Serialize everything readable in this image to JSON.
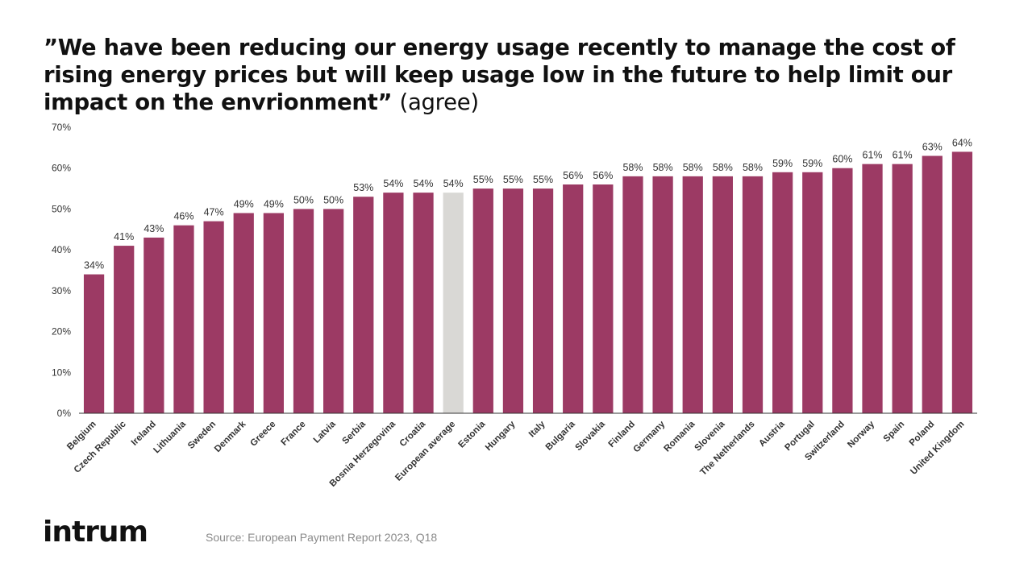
{
  "title": {
    "quote": "”We have been reducing our energy usage recently to manage the cost of rising energy prices but will keep usage low in the future to help limit our impact on the envrionment”",
    "suffix": "(agree)"
  },
  "chart_data": {
    "type": "bar",
    "title": "”We have been reducing our energy usage recently to manage the cost of rising energy prices but will keep usage low in the future to help limit our impact on the envrionment” (agree)",
    "xlabel": "",
    "ylabel": "",
    "ylim": [
      0,
      70
    ],
    "yticks": [
      "0%",
      "10%",
      "20%",
      "30%",
      "40%",
      "50%",
      "60%",
      "70%"
    ],
    "ytick_values": [
      0,
      10,
      20,
      30,
      40,
      50,
      60,
      70
    ],
    "grid": false,
    "categories": [
      "Belgium",
      "Czech Republic",
      "Ireland",
      "Lithuania",
      "Sweden",
      "Denmark",
      "Greece",
      "France",
      "Latvia",
      "Serbia",
      "Bosnia Herzegovina",
      "Croatia",
      "European average",
      "Estonia",
      "Hungary",
      "Italy",
      "Bulgaria",
      "Slovakia",
      "Finland",
      "Germany",
      "Romania",
      "Slovenia",
      "The Netherlands",
      "Austria",
      "Portugal",
      "Switzerland",
      "Norway",
      "Spain",
      "Poland",
      "United Kingdom"
    ],
    "values": [
      34,
      41,
      43,
      46,
      47,
      49,
      49,
      50,
      50,
      53,
      54,
      54,
      54,
      55,
      55,
      55,
      56,
      56,
      58,
      58,
      58,
      58,
      58,
      59,
      59,
      60,
      61,
      61,
      63,
      64
    ],
    "labels": [
      "34%",
      "41%",
      "43%",
      "46%",
      "47%",
      "49%",
      "49%",
      "50%",
      "50%",
      "53%",
      "54%",
      "54%",
      "54%",
      "55%",
      "55%",
      "55%",
      "56%",
      "56%",
      "58%",
      "58%",
      "58%",
      "58%",
      "58%",
      "59%",
      "59%",
      "60%",
      "61%",
      "61%",
      "63%",
      "64%"
    ],
    "highlight_category": "European average",
    "colors": {
      "bar": "#9c3a64",
      "highlight": "#d9d8d5",
      "axis": "#333333",
      "text": "#333333"
    }
  },
  "footer": {
    "logo": "intrum",
    "source": "Source: European Payment Report 2023, Q18"
  }
}
